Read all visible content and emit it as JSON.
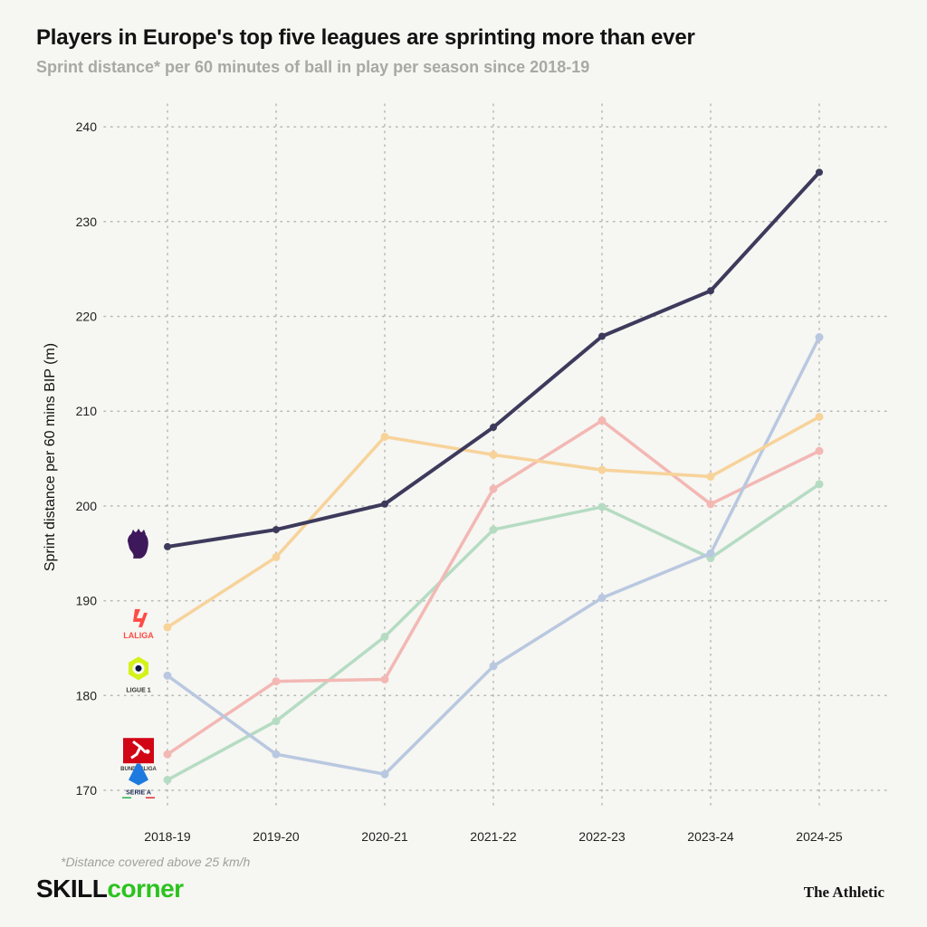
{
  "header": {
    "title": "Players in Europe's top five leagues are sprinting more than ever",
    "subtitle": "Sprint distance* per 60 minutes of ball in play per season since 2018-19"
  },
  "footer": {
    "footnote": "*Distance covered above 25 km/h",
    "brand_left_a": "SKILL",
    "brand_left_b": "corner",
    "brand_right": "The Athletic"
  },
  "chart_data": {
    "type": "line",
    "title": "Players in Europe's top five leagues are sprinting more than ever",
    "subtitle": "Sprint distance* per 60 minutes of ball in play per season since 2018-19",
    "xlabel": "",
    "ylabel": "Sprint distance per 60 mins BIP (m)",
    "categories": [
      "2018-19",
      "2019-20",
      "2020-21",
      "2021-22",
      "2022-23",
      "2023-24",
      "2024-25"
    ],
    "ylim": [
      167,
      243
    ],
    "yticks": [
      170,
      180,
      190,
      200,
      210,
      220,
      230,
      240
    ],
    "grid": "dotted both axes",
    "legend": "league logos at left",
    "series": [
      {
        "logo": "premier-league-logo",
        "logo_text": "",
        "color": "#3d3a5c",
        "values": [
          195.7,
          197.5,
          200.2,
          208.3,
          217.9,
          222.7,
          235.2
        ]
      },
      {
        "logo": "laliga-logo",
        "logo_text": "LALIGA",
        "color": "#f7d39a",
        "values": [
          187.2,
          194.6,
          207.3,
          205.4,
          203.8,
          203.1,
          209.4
        ]
      },
      {
        "logo": "ligue1-logo",
        "logo_text": "LIGUE 1",
        "color": "#b9c8e0",
        "values": [
          182.1,
          173.8,
          171.7,
          183.1,
          190.3,
          195.0,
          217.8
        ]
      },
      {
        "logo": "bundesliga-logo",
        "logo_text": "BUNDESLIGA",
        "color": "#f3b8b4",
        "values": [
          173.8,
          181.5,
          181.7,
          201.8,
          209.0,
          200.2,
          205.8
        ]
      },
      {
        "logo": "serie-a-logo",
        "logo_text": "SERIE A",
        "color": "#b5dcc3",
        "values": [
          171.1,
          177.3,
          186.2,
          197.5,
          199.9,
          194.5,
          202.3
        ]
      }
    ]
  }
}
